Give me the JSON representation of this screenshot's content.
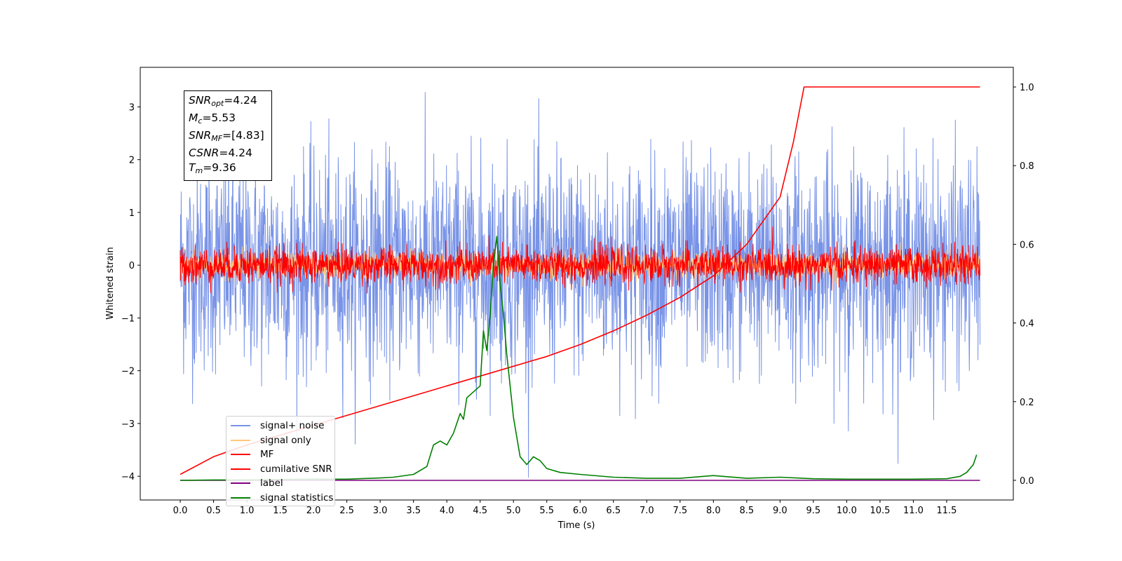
{
  "chart_data": {
    "type": "line",
    "xlabel": "Time (s)",
    "ylabel": "Whitened strain",
    "x_ticks": [
      "0.0",
      "0.5",
      "1.0",
      "1.5",
      "2.0",
      "2.5",
      "3.0",
      "3.5",
      "4.0",
      "4.5",
      "5.0",
      "5.5",
      "6.0",
      "6.5",
      "7.0",
      "7.5",
      "8.0",
      "8.5",
      "9.0",
      "9.5",
      "10.0",
      "10.5",
      "11.0",
      "11.5"
    ],
    "y_ticks_left": [
      "−4",
      "−3",
      "−2",
      "−1",
      "0",
      "1",
      "2",
      "3"
    ],
    "y_ticks_right": [
      "0.0",
      "0.2",
      "0.4",
      "0.6",
      "0.8",
      "1.0"
    ],
    "xlim": [
      -0.6,
      12.5
    ],
    "ylim_left": [
      -4.45,
      3.75
    ],
    "ylim_right": [
      -0.05,
      1.05
    ],
    "grid": false,
    "legend_position": "lower-left",
    "stats": [
      {
        "sym": "SNR",
        "sub": "opt",
        "val": "=4.24"
      },
      {
        "sym": "M",
        "sub": "c",
        "val": "=5.53"
      },
      {
        "sym": "SNR",
        "sub": "MF",
        "val": "=[4.83]"
      },
      {
        "sym": "CSNR",
        "sub": "",
        "val": "=4.24"
      },
      {
        "sym": "T",
        "sub": "m",
        "val": "=9.36"
      }
    ],
    "series": [
      {
        "name": "signal+ noise",
        "color": "#7893e7",
        "axis": "left",
        "kind": "noise",
        "sigma": 1.0,
        "x_range": [
          0.0,
          12.0
        ]
      },
      {
        "name": "signal only",
        "color": "#ffc77a",
        "axis": "left",
        "kind": "noise",
        "sigma": 0.12,
        "x_range": [
          0.0,
          12.0
        ]
      },
      {
        "name": "MF",
        "color": "#ff0000",
        "axis": "left",
        "kind": "noise",
        "sigma": 0.17,
        "x_range": [
          0.0,
          12.0
        ]
      },
      {
        "name": "cumilative SNR",
        "color": "#ff0000",
        "axis": "right",
        "x": [
          0.0,
          0.5,
          1.0,
          1.5,
          2.0,
          2.5,
          3.0,
          3.5,
          4.0,
          4.5,
          5.0,
          5.5,
          6.0,
          6.5,
          7.0,
          7.5,
          8.0,
          8.5,
          9.0,
          9.2,
          9.36,
          10.0,
          10.5,
          11.0,
          11.5,
          12.0
        ],
        "y": [
          0.015,
          0.06,
          0.09,
          0.115,
          0.14,
          0.165,
          0.19,
          0.215,
          0.24,
          0.265,
          0.29,
          0.315,
          0.345,
          0.38,
          0.42,
          0.465,
          0.52,
          0.6,
          0.72,
          0.86,
          1.0,
          1.0,
          1.0,
          1.0,
          1.0,
          1.0
        ]
      },
      {
        "name": "label",
        "color": "#800080",
        "axis": "right",
        "x": [
          0.0,
          12.0
        ],
        "y": [
          0.0,
          0.0
        ]
      },
      {
        "name": "signal statistics",
        "color": "#008000",
        "axis": "right",
        "x": [
          0.0,
          0.5,
          1.0,
          1.5,
          2.0,
          2.5,
          3.0,
          3.2,
          3.5,
          3.7,
          3.8,
          3.9,
          4.0,
          4.1,
          4.2,
          4.25,
          4.3,
          4.4,
          4.5,
          4.55,
          4.6,
          4.65,
          4.7,
          4.75,
          4.8,
          4.85,
          4.9,
          5.0,
          5.1,
          5.2,
          5.3,
          5.4,
          5.5,
          5.7,
          6.0,
          6.5,
          7.0,
          7.5,
          8.0,
          8.5,
          9.0,
          9.5,
          10.0,
          10.5,
          11.0,
          11.5,
          11.7,
          11.8,
          11.9,
          11.95
        ],
        "y": [
          0.0,
          0.001,
          0.001,
          0.002,
          0.003,
          0.003,
          0.006,
          0.008,
          0.015,
          0.035,
          0.09,
          0.1,
          0.09,
          0.12,
          0.17,
          0.155,
          0.21,
          0.225,
          0.24,
          0.38,
          0.33,
          0.42,
          0.55,
          0.62,
          0.5,
          0.42,
          0.32,
          0.16,
          0.06,
          0.04,
          0.06,
          0.05,
          0.03,
          0.02,
          0.015,
          0.008,
          0.005,
          0.005,
          0.012,
          0.005,
          0.008,
          0.004,
          0.003,
          0.003,
          0.003,
          0.004,
          0.01,
          0.02,
          0.04,
          0.065
        ]
      }
    ]
  }
}
